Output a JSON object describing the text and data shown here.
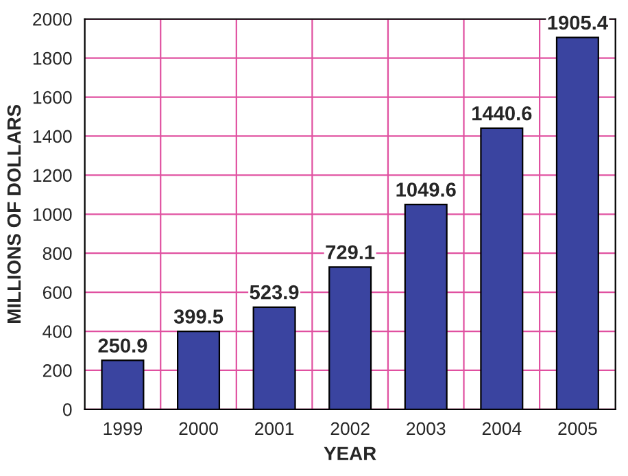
{
  "chart_data": {
    "type": "bar",
    "xlabel": "YEAR",
    "ylabel": "MILLIONS OF DOLLARS",
    "categories": [
      "1999",
      "2000",
      "2001",
      "2002",
      "2003",
      "2004",
      "2005"
    ],
    "values": [
      250.9,
      399.5,
      523.9,
      729.1,
      1049.6,
      1440.6,
      1905.4
    ],
    "color": "#3a44a0",
    "ylim": [
      0,
      2000
    ],
    "yticks": [
      0,
      200,
      400,
      600,
      800,
      1000,
      1200,
      1400,
      1600,
      1800,
      2000
    ],
    "grid": true,
    "data_labels": true
  }
}
